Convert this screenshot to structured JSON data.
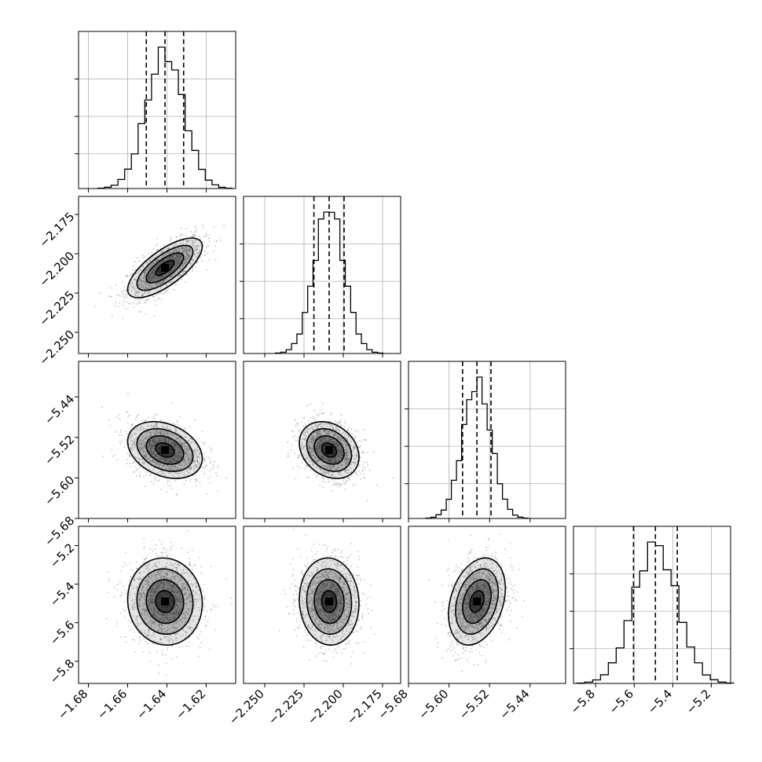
{
  "chart_data": {
    "type": "corner",
    "parameters": [
      {
        "range": [
          -1.685,
          -1.605
        ],
        "ticks": [
          -1.68,
          -1.66,
          -1.64,
          -1.62
        ],
        "tick_labels": [
          "−1.68",
          "−1.66",
          "−1.64",
          "−1.62"
        ],
        "median": -1.641,
        "quantiles": [
          -1.6505,
          -1.641,
          -1.6315
        ],
        "sd": 0.0095
      },
      {
        "range": [
          -2.2635,
          -2.1635
        ],
        "ticks": [
          -2.25,
          -2.225,
          -2.2,
          -2.175
        ],
        "tick_labels": [
          "−2.250",
          "−2.225",
          "−2.200",
          "−2.175"
        ],
        "median": -2.209,
        "quantiles": [
          -2.2187,
          -2.209,
          -2.1995
        ],
        "sd": 0.0095
      },
      {
        "range": [
          -5.68,
          -5.37
        ],
        "ticks": [
          -5.68,
          -5.6,
          -5.52,
          -5.44
        ],
        "tick_labels": [
          "−5.68",
          "−5.60",
          "−5.52",
          "−5.44"
        ],
        "median": -5.545,
        "quantiles": [
          -5.5733,
          -5.545,
          -5.5172
        ],
        "sd": 0.028
      },
      {
        "range": [
          -5.915,
          -5.1
        ],
        "ticks": [
          -5.8,
          -5.6,
          -5.4,
          -5.2
        ],
        "tick_labels": [
          "−5.8",
          "−5.6",
          "−5.4",
          "−5.2"
        ],
        "median": -5.49,
        "quantiles": [
          -5.6035,
          -5.49,
          -5.3765
        ],
        "sd": 0.113
      }
    ],
    "correlations": [
      [
        1,
        0.72,
        -0.3,
        -0.05
      ],
      [
        0.72,
        1,
        -0.25,
        -0.05
      ],
      [
        -0.3,
        -0.25,
        1,
        0.3
      ],
      [
        -0.05,
        -0.05,
        0.3,
        1
      ]
    ],
    "hist_bins": 20,
    "quantile_levels": [
      0.16,
      0.5,
      0.84
    ],
    "grid": true,
    "colors": {
      "frame": "#000000",
      "grid": "#b0b0b0",
      "points": "#808080"
    }
  }
}
